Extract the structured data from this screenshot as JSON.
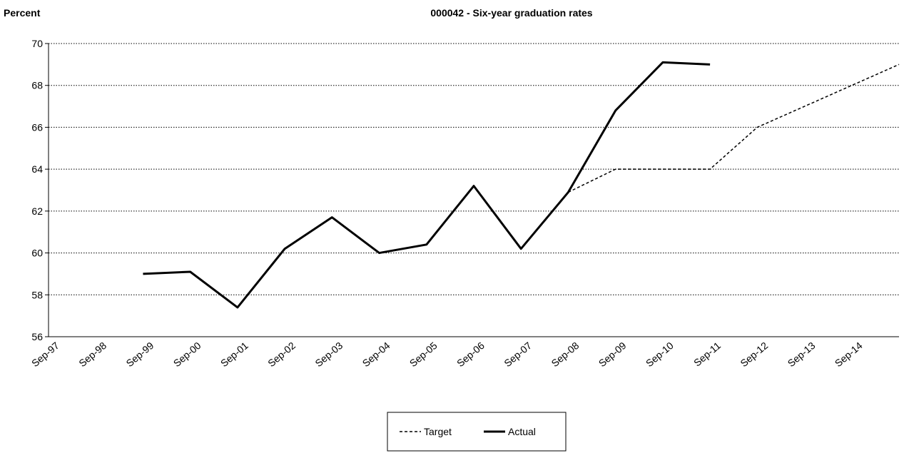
{
  "chart_data": {
    "type": "line",
    "title": "000042 - Six-year graduation rates",
    "y_label": "Percent",
    "categories": [
      "Sep-97",
      "Sep-98",
      "Sep-99",
      "Sep-00",
      "Sep-01",
      "Sep-02",
      "Sep-03",
      "Sep-04",
      "Sep-05",
      "Sep-06",
      "Sep-07",
      "Sep-08",
      "Sep-09",
      "Sep-10",
      "Sep-11",
      "Sep-12",
      "Sep-13",
      "Sep-14",
      null
    ],
    "series": [
      {
        "name": "Target",
        "color": "#000000",
        "style": "dashed",
        "values": [
          null,
          null,
          null,
          null,
          null,
          null,
          null,
          null,
          null,
          null,
          null,
          62.9,
          64,
          64,
          64,
          66,
          67,
          68,
          69
        ]
      },
      {
        "name": "Actual",
        "color": "#000000",
        "style": "solid",
        "values": [
          null,
          null,
          59,
          59.1,
          57.4,
          60.2,
          61.7,
          60,
          60.4,
          63.2,
          60.2,
          62.9,
          66.8,
          69.1,
          69,
          null,
          null,
          null,
          null
        ]
      }
    ],
    "ylim": [
      56,
      70
    ],
    "yticks": [
      56,
      58,
      60,
      62,
      64,
      66,
      68,
      70
    ],
    "grid": true,
    "legend": "bottom"
  }
}
